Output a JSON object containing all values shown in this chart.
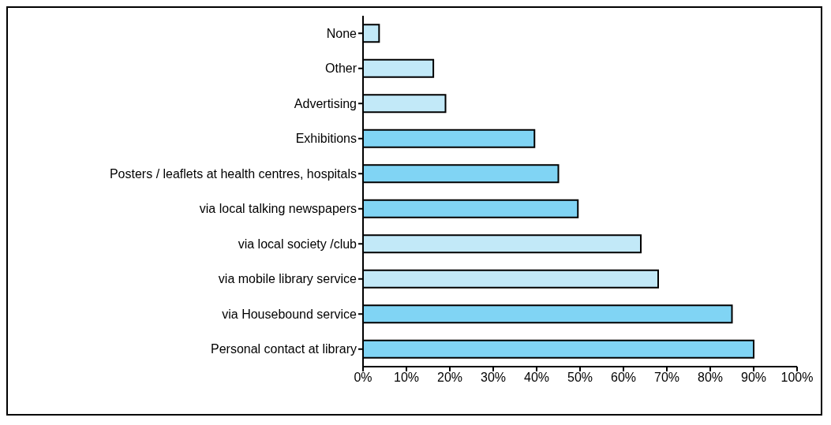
{
  "chart_data": {
    "type": "bar",
    "orientation": "horizontal",
    "categories": [
      "None",
      "Other",
      "Advertising",
      "Exhibitions",
      "Posters / leaflets at health centres, hospitals",
      "via local talking newspapers",
      "via local society /club",
      "via mobile library service",
      "via Housebound service",
      "Personal contact at library"
    ],
    "values": [
      3.7,
      16.2,
      19,
      39.5,
      45,
      49.5,
      64,
      68,
      85,
      90
    ],
    "colors": [
      "#c2e9f8",
      "#c2e9f8",
      "#c2e9f8",
      "#80d4f4",
      "#80d4f4",
      "#80d4f4",
      "#c2e9f8",
      "#c2e9f8",
      "#80d4f4",
      "#80d4f4"
    ],
    "xlim": [
      0,
      100
    ],
    "xticks": [
      {
        "value": 0,
        "label": "0%"
      },
      {
        "value": 10,
        "label": "10%"
      },
      {
        "value": 20,
        "label": "20%"
      },
      {
        "value": 30,
        "label": "30%"
      },
      {
        "value": 40,
        "label": "40%"
      },
      {
        "value": 50,
        "label": "50%"
      },
      {
        "value": 60,
        "label": "60%"
      },
      {
        "value": 70,
        "label": "70%"
      },
      {
        "value": 80,
        "label": "80%"
      },
      {
        "value": 90,
        "label": "90%"
      },
      {
        "value": 100,
        "label": "100%"
      }
    ],
    "grid": false
  }
}
